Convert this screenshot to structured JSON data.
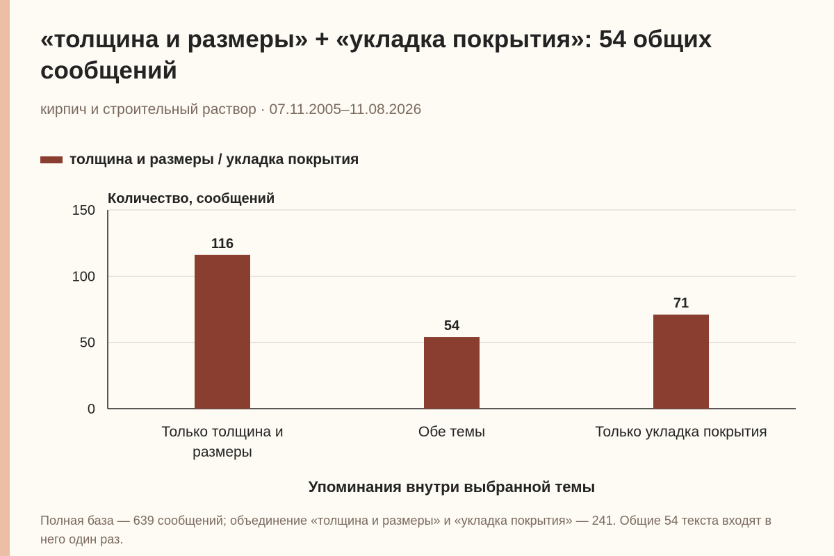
{
  "header": {
    "title": "«толщина и размеры» + «укладка покрытия»: 54 общих сообщений",
    "subtitle": "кирпич и строительный раствор · 07.11.2005–11.08.2026"
  },
  "legend": {
    "label": "толщина и размеры / укладка покрытия"
  },
  "footnote": "Полная база — 639 сообщений; объединение «толщина и размеры» и «укладка покрытия» — 241. Общие 54 текста входят в него один раз.",
  "colors": {
    "bar": "#8a3e2f",
    "accent": "#ecbea5",
    "background": "#fdfbf4"
  },
  "chart_data": {
    "type": "bar",
    "categories": [
      [
        "Только толщина и",
        "размеры"
      ],
      [
        "Обе темы"
      ],
      [
        "Только укладка покрытия"
      ]
    ],
    "series": [
      {
        "name": "толщина и размеры / укладка покрытия",
        "values": [
          116,
          54,
          71
        ]
      }
    ],
    "ylabel": "Количество, сообщений",
    "xlabel": "Упоминания внутри выбранной темы",
    "ylim": [
      0,
      150
    ],
    "yticks": [
      0,
      50,
      100,
      150
    ],
    "grid": true,
    "legend_position": "top-left"
  }
}
